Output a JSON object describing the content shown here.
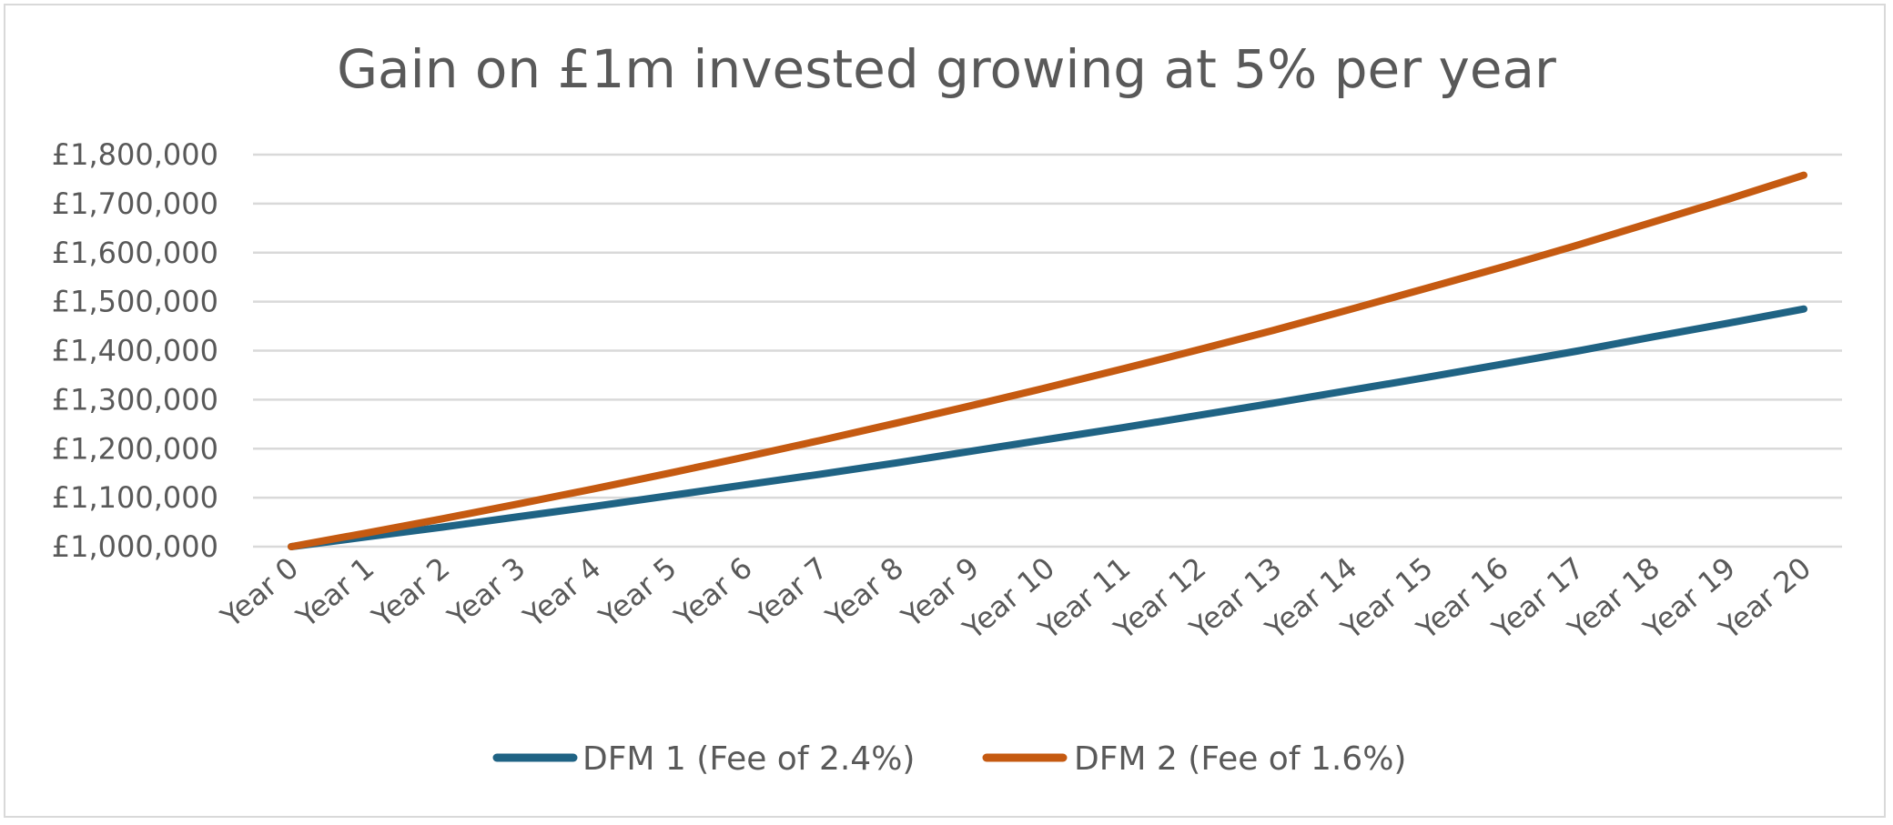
{
  "chart_data": {
    "type": "line",
    "title": "Gain on £1m invested growing at 5% per year",
    "xlabel": "",
    "ylabel": "",
    "categories": [
      "Year 0",
      "Year 1",
      "Year 2",
      "Year 3",
      "Year 4",
      "Year 5",
      "Year 6",
      "Year 7",
      "Year 8",
      "Year 9",
      "Year 10",
      "Year 11",
      "Year 12",
      "Year 13",
      "Year 14",
      "Year 15",
      "Year 16",
      "Year 17",
      "Year 18",
      "Year 19",
      "Year 20"
    ],
    "ylim": [
      1000000,
      1800000
    ],
    "yticks": [
      1000000,
      1100000,
      1200000,
      1300000,
      1400000,
      1500000,
      1600000,
      1700000,
      1800000
    ],
    "ytick_labels": [
      "£1,000,000",
      "£1,100,000",
      "£1,200,000",
      "£1,300,000",
      "£1,400,000",
      "£1,500,000",
      "£1,600,000",
      "£1,700,000",
      "£1,800,000"
    ],
    "grid": true,
    "legend_position": "bottom",
    "series": [
      {
        "name": "DFM 1 (Fee of 2.4%)",
        "color": "#1f6384",
        "values": [
          1000000,
          1020000,
          1040000,
          1061000,
          1082000,
          1104000,
          1126000,
          1148000,
          1171000,
          1195000,
          1219000,
          1243000,
          1268000,
          1293000,
          1319000,
          1345000,
          1372000,
          1399000,
          1428000,
          1456000,
          1485000
        ]
      },
      {
        "name": "DFM 2 (Fee of 1.6%)",
        "color": "#c55a11",
        "values": [
          1000000,
          1028000,
          1057000,
          1087000,
          1118000,
          1150000,
          1183000,
          1217000,
          1252000,
          1288000,
          1325000,
          1363000,
          1402000,
          1442000,
          1484000,
          1527000,
          1570000,
          1615000,
          1662000,
          1709000,
          1758000
        ]
      }
    ]
  }
}
